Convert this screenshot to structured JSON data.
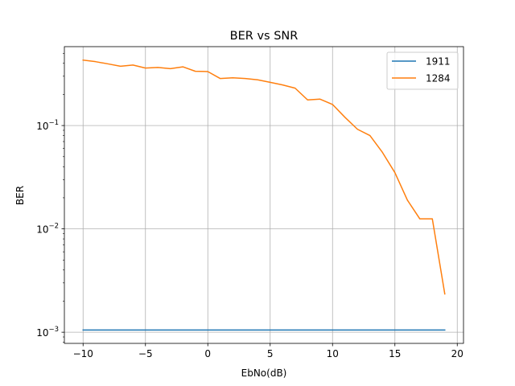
{
  "chart_data": {
    "type": "line",
    "title": "BER vs SNR",
    "xlabel": "EbNo(dB)",
    "ylabel": "BER",
    "xlim": [
      -11.5,
      20.5
    ],
    "ylim": [
      0.00078,
      0.58
    ],
    "yscale": "log",
    "grid": true,
    "legend_position": "top-right",
    "x_ticks": [
      -10,
      -5,
      0,
      5,
      10,
      15,
      20
    ],
    "x_tick_labels": [
      "−10",
      "−5",
      "0",
      "5",
      "10",
      "15",
      "20"
    ],
    "y_ticks": [
      {
        "value": 0.001,
        "base": "10",
        "exp": "−3"
      },
      {
        "value": 0.01,
        "base": "10",
        "exp": "−2"
      },
      {
        "value": 0.1,
        "base": "10",
        "exp": "−1"
      }
    ],
    "series": [
      {
        "name": "1911",
        "color": "#1f77b4",
        "x": [
          -10,
          19
        ],
        "y": [
          0.00105,
          0.00105
        ]
      },
      {
        "name": "1284",
        "color": "#ff7f0e",
        "x": [
          -10,
          -9,
          -8,
          -7,
          -6,
          -5,
          -4,
          -3,
          -2,
          -1,
          0,
          1,
          2,
          3,
          4,
          5,
          6,
          7,
          8,
          9,
          10,
          11,
          12,
          13,
          14,
          15,
          16,
          17,
          18,
          19
        ],
        "y": [
          0.43,
          0.415,
          0.395,
          0.375,
          0.385,
          0.36,
          0.365,
          0.355,
          0.37,
          0.335,
          0.333,
          0.285,
          0.29,
          0.285,
          0.277,
          0.262,
          0.247,
          0.23,
          0.177,
          0.18,
          0.16,
          0.12,
          0.092,
          0.08,
          0.055,
          0.035,
          0.019,
          0.0125,
          0.0125,
          0.00235
        ]
      }
    ]
  }
}
